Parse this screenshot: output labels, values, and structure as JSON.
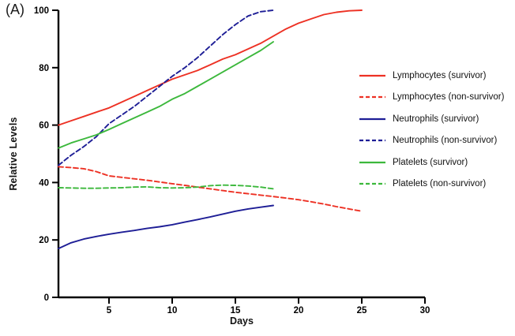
{
  "panel_label": "(A)",
  "chart_data": {
    "type": "line",
    "title": "",
    "xlabel": "Days",
    "ylabel": "Relative Levels",
    "xlim": [
      1,
      30
    ],
    "ylim": [
      0,
      100
    ],
    "x_ticks": [
      5,
      10,
      15,
      20,
      25,
      30
    ],
    "y_ticks": [
      0,
      20,
      40,
      60,
      80,
      100
    ],
    "grid": false,
    "legend_position": "right",
    "axis_color": "#000000",
    "series": [
      {
        "name": "Lymphocytes (survivor)",
        "color": "#ed3124",
        "style": "solid",
        "x": [
          1,
          2,
          3,
          4,
          5,
          6,
          7,
          8,
          9,
          10,
          11,
          12,
          13,
          14,
          15,
          16,
          17,
          18,
          19,
          20,
          21,
          22,
          23,
          24,
          25
        ],
        "values": [
          60,
          61.5,
          63,
          64.5,
          66,
          68,
          70,
          72,
          74,
          76,
          77.5,
          79,
          81,
          83,
          84.5,
          86.5,
          88.5,
          91,
          93.5,
          95.5,
          97,
          98.5,
          99.3,
          99.8,
          100
        ]
      },
      {
        "name": "Lymphocytes (non-survivor)",
        "color": "#ed3124",
        "style": "dashed",
        "x": [
          1,
          2,
          3,
          4,
          5,
          6,
          7,
          8,
          9,
          10,
          11,
          12,
          13,
          14,
          15,
          16,
          17,
          18,
          19,
          20,
          21,
          22,
          23,
          24,
          25
        ],
        "values": [
          45.5,
          45.2,
          44.8,
          43.8,
          42.3,
          41.8,
          41.3,
          40.8,
          40.2,
          39.6,
          39,
          38.4,
          37.8,
          37.2,
          36.6,
          36.1,
          35.6,
          35.1,
          34.6,
          34,
          33.3,
          32.5,
          31.6,
          30.8,
          30
        ]
      },
      {
        "name": "Neutrophils (survivor)",
        "color": "#1e1e96",
        "style": "solid",
        "x": [
          1,
          2,
          3,
          4,
          5,
          6,
          7,
          8,
          9,
          10,
          11,
          12,
          13,
          14,
          15,
          16,
          17,
          18
        ],
        "values": [
          17,
          19,
          20.3,
          21.2,
          22,
          22.7,
          23.3,
          24,
          24.6,
          25.3,
          26.2,
          27.1,
          28,
          29,
          30,
          30.8,
          31.4,
          32
        ]
      },
      {
        "name": "Neutrophils (non-survivor)",
        "color": "#1e1e96",
        "style": "dashed",
        "x": [
          1,
          2,
          3,
          4,
          5,
          6,
          7,
          8,
          9,
          10,
          11,
          12,
          13,
          14,
          15,
          16,
          17,
          18
        ],
        "values": [
          46,
          49.5,
          52.5,
          56,
          60.5,
          63.5,
          66.5,
          70,
          73.5,
          77,
          80,
          83.5,
          87.5,
          91.5,
          95,
          98,
          99.5,
          100
        ]
      },
      {
        "name": "Platelets (survivor)",
        "color": "#3cb83c",
        "style": "solid",
        "x": [
          1,
          2,
          3,
          4,
          5,
          6,
          7,
          8,
          9,
          10,
          11,
          12,
          13,
          14,
          15,
          16,
          17,
          18
        ],
        "values": [
          52,
          53.8,
          55.2,
          56.6,
          58.5,
          60.5,
          62.5,
          64.5,
          66.5,
          69,
          71,
          73.5,
          76,
          78.5,
          81,
          83.5,
          86,
          89
        ]
      },
      {
        "name": "Platelets (non-survivor)",
        "color": "#3cb83c",
        "style": "dashed",
        "x": [
          1,
          2,
          3,
          4,
          5,
          6,
          7,
          8,
          9,
          10,
          11,
          12,
          13,
          14,
          15,
          16,
          17,
          18
        ],
        "values": [
          38.2,
          38.1,
          38,
          38,
          38.1,
          38.2,
          38.4,
          38.5,
          38.2,
          38.1,
          38.2,
          38.4,
          38.9,
          39.1,
          39,
          38.8,
          38.4,
          37.8
        ]
      }
    ]
  }
}
